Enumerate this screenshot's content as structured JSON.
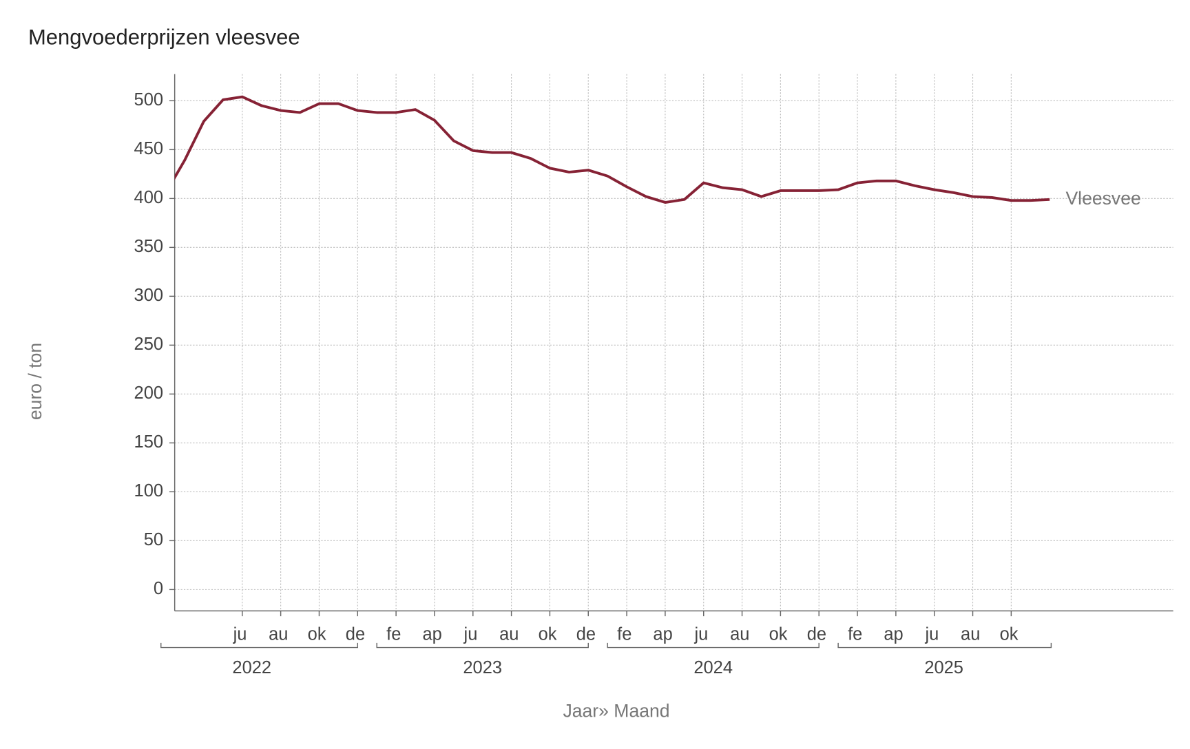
{
  "chart_data": {
    "type": "line",
    "title": "Mengvoederprijzen vleesvee",
    "xlabel": "Jaar» Maand",
    "ylabel": "euro / ton",
    "ylim": [
      0,
      500
    ],
    "yticks": [
      0,
      50,
      100,
      150,
      200,
      250,
      300,
      350,
      400,
      450,
      500
    ],
    "grid": true,
    "legend": "direct-label-right",
    "color": "#862235",
    "month_ticks": [
      {
        "year": 2022,
        "month": 6,
        "label": "ju"
      },
      {
        "year": 2022,
        "month": 8,
        "label": "au"
      },
      {
        "year": 2022,
        "month": 10,
        "label": "ok"
      },
      {
        "year": 2022,
        "month": 12,
        "label": "de"
      },
      {
        "year": 2023,
        "month": 2,
        "label": "fe"
      },
      {
        "year": 2023,
        "month": 4,
        "label": "ap"
      },
      {
        "year": 2023,
        "month": 6,
        "label": "ju"
      },
      {
        "year": 2023,
        "month": 8,
        "label": "au"
      },
      {
        "year": 2023,
        "month": 10,
        "label": "ok"
      },
      {
        "year": 2023,
        "month": 12,
        "label": "de"
      },
      {
        "year": 2024,
        "month": 2,
        "label": "fe"
      },
      {
        "year": 2024,
        "month": 4,
        "label": "ap"
      },
      {
        "year": 2024,
        "month": 6,
        "label": "ju"
      },
      {
        "year": 2024,
        "month": 8,
        "label": "au"
      },
      {
        "year": 2024,
        "month": 10,
        "label": "ok"
      },
      {
        "year": 2024,
        "month": 12,
        "label": "de"
      },
      {
        "year": 2025,
        "month": 2,
        "label": "fe"
      },
      {
        "year": 2025,
        "month": 4,
        "label": "ap"
      },
      {
        "year": 2025,
        "month": 6,
        "label": "ju"
      },
      {
        "year": 2025,
        "month": 8,
        "label": "au"
      },
      {
        "year": 2025,
        "month": 10,
        "label": "ok"
      }
    ],
    "years": [
      "2022",
      "2023",
      "2024",
      "2025"
    ],
    "series": [
      {
        "name": "Vleesvee",
        "start": {
          "year": 2022,
          "month": 2
        },
        "values": [
          405,
          439,
          479,
          501,
          504,
          495,
          490,
          488,
          497,
          497,
          490,
          488,
          488,
          491,
          480,
          459,
          449,
          447,
          447,
          441,
          431,
          427,
          429,
          423,
          412,
          402,
          396,
          399,
          416,
          411,
          409,
          402,
          408,
          408,
          408,
          409,
          416,
          418,
          418,
          413,
          409,
          406,
          402,
          401,
          398,
          398,
          399
        ]
      }
    ]
  }
}
